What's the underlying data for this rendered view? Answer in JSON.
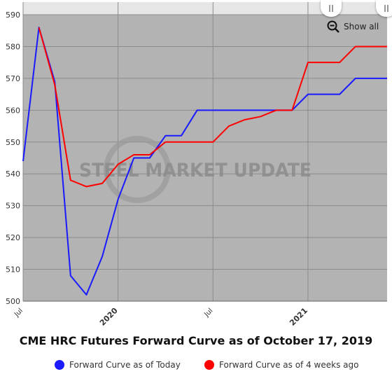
{
  "chart_data": {
    "type": "line",
    "title": "CME HRC Futures Forward Curve as of October 17, 2019",
    "watermark": "STEEL MARKET UPDATE",
    "ylim": [
      500,
      590
    ],
    "yticks": [
      500,
      510,
      520,
      530,
      540,
      550,
      560,
      570,
      580,
      590
    ],
    "xticks": [
      {
        "label": "Jul",
        "x": 0,
        "bold": false
      },
      {
        "label": "2020",
        "x": 6,
        "bold": true
      },
      {
        "label": "Jul",
        "x": 12,
        "bold": false
      },
      {
        "label": "2021",
        "x": 18,
        "bold": true
      }
    ],
    "xlim": [
      0,
      23
    ],
    "grid": true,
    "legend_position": "bottom",
    "series": [
      {
        "name": "Forward Curve as of Today",
        "color": "#1a1aff",
        "x": [
          0,
          1,
          2,
          3,
          4,
          5,
          6,
          7,
          8,
          9,
          10,
          11,
          12,
          13,
          14,
          15,
          16,
          17,
          18,
          19,
          20,
          21,
          22,
          23
        ],
        "values": [
          544,
          586,
          569,
          508,
          502,
          514,
          532,
          545,
          545,
          552,
          552,
          560,
          560,
          560,
          560,
          560,
          560,
          560,
          565,
          565,
          565,
          570,
          570,
          570
        ]
      },
      {
        "name": "Forward Curve as of 4 weeks ago",
        "color": "#ff0000",
        "x": [
          1,
          2,
          3,
          4,
          5,
          6,
          7,
          8,
          9,
          10,
          11,
          12,
          13,
          14,
          15,
          16,
          17,
          18,
          19,
          20,
          21,
          22,
          23
        ],
        "values": [
          586,
          568,
          538,
          536,
          537,
          543,
          546,
          546,
          550,
          550,
          550,
          550,
          555,
          557,
          558,
          560,
          560,
          575,
          575,
          575,
          580,
          580,
          580
        ]
      }
    ]
  },
  "controls": {
    "show_all_label": "Show all"
  }
}
